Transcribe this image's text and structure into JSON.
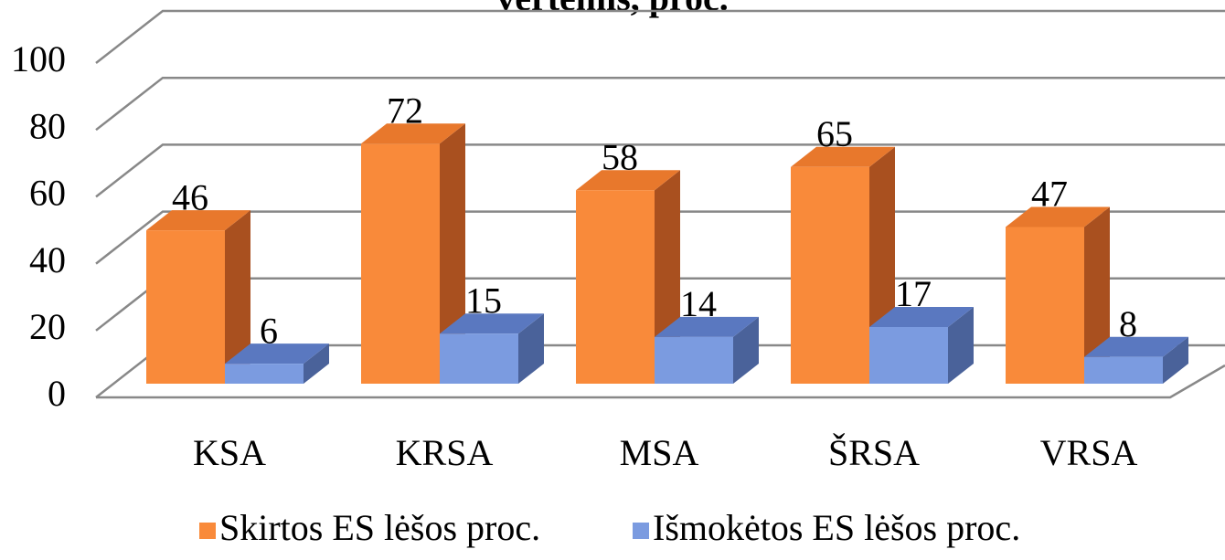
{
  "chart_data": {
    "type": "bar3d",
    "title": "vertėmis, proc.",
    "categories": [
      "KSA",
      "KRSA",
      "MSA",
      "ŠRSA",
      "VRSA"
    ],
    "series": [
      {
        "name": "Skirtos ES lėšos proc.",
        "color": "#f98a3a",
        "values": [
          46,
          72,
          58,
          65,
          47
        ]
      },
      {
        "name": "Išmokėtos ES lėšos proc.",
        "color": "#7b9be0",
        "values": [
          6,
          15,
          14,
          17,
          8
        ]
      }
    ],
    "ylim": [
      0,
      100
    ],
    "yticks": [
      0,
      20,
      40,
      60,
      80,
      100
    ],
    "grid": true,
    "legend": "bottom"
  }
}
